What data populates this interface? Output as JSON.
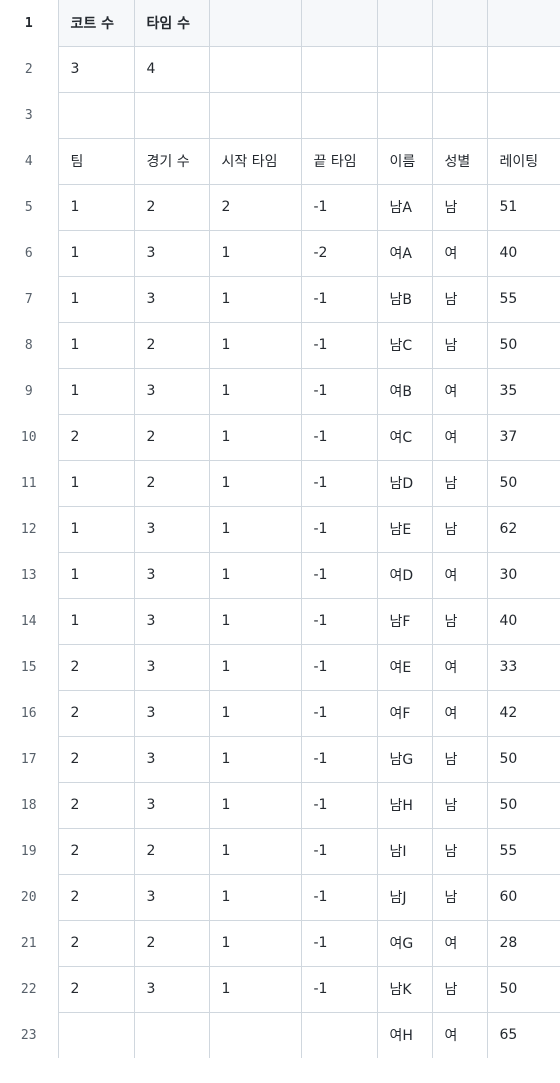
{
  "sheet": {
    "columns": 7,
    "rows": [
      {
        "n": "1",
        "cells": [
          "코트 수",
          "타임 수",
          "",
          "",
          "",
          "",
          ""
        ]
      },
      {
        "n": "2",
        "cells": [
          "3",
          "4",
          "",
          "",
          "",
          "",
          ""
        ]
      },
      {
        "n": "3",
        "cells": [
          "",
          "",
          "",
          "",
          "",
          "",
          ""
        ]
      },
      {
        "n": "4",
        "cells": [
          "팀",
          "경기 수",
          "시작 타임",
          "끝 타임",
          "이름",
          "성별",
          "레이팅"
        ]
      },
      {
        "n": "5",
        "cells": [
          "1",
          "2",
          "2",
          "-1",
          "남A",
          "남",
          "51"
        ]
      },
      {
        "n": "6",
        "cells": [
          "1",
          "3",
          "1",
          "-2",
          "여A",
          "여",
          "40"
        ]
      },
      {
        "n": "7",
        "cells": [
          "1",
          "3",
          "1",
          "-1",
          "남B",
          "남",
          "55"
        ]
      },
      {
        "n": "8",
        "cells": [
          "1",
          "2",
          "1",
          "-1",
          "남C",
          "남",
          "50"
        ]
      },
      {
        "n": "9",
        "cells": [
          "1",
          "3",
          "1",
          "-1",
          "여B",
          "여",
          "35"
        ]
      },
      {
        "n": "10",
        "cells": [
          "2",
          "2",
          "1",
          "-1",
          "여C",
          "여",
          "37"
        ]
      },
      {
        "n": "11",
        "cells": [
          "1",
          "2",
          "1",
          "-1",
          "남D",
          "남",
          "50"
        ]
      },
      {
        "n": "12",
        "cells": [
          "1",
          "3",
          "1",
          "-1",
          "남E",
          "남",
          "62"
        ]
      },
      {
        "n": "13",
        "cells": [
          "1",
          "3",
          "1",
          "-1",
          "여D",
          "여",
          "30"
        ]
      },
      {
        "n": "14",
        "cells": [
          "1",
          "3",
          "1",
          "-1",
          "남F",
          "남",
          "40"
        ]
      },
      {
        "n": "15",
        "cells": [
          "2",
          "3",
          "1",
          "-1",
          "여E",
          "여",
          "33"
        ]
      },
      {
        "n": "16",
        "cells": [
          "2",
          "3",
          "1",
          "-1",
          "여F",
          "여",
          "42"
        ]
      },
      {
        "n": "17",
        "cells": [
          "2",
          "3",
          "1",
          "-1",
          "남G",
          "남",
          "50"
        ]
      },
      {
        "n": "18",
        "cells": [
          "2",
          "3",
          "1",
          "-1",
          "남H",
          "남",
          "50"
        ]
      },
      {
        "n": "19",
        "cells": [
          "2",
          "2",
          "1",
          "-1",
          "남I",
          "남",
          "55"
        ]
      },
      {
        "n": "20",
        "cells": [
          "2",
          "3",
          "1",
          "-1",
          "남J",
          "남",
          "60"
        ]
      },
      {
        "n": "21",
        "cells": [
          "2",
          "2",
          "1",
          "-1",
          "여G",
          "여",
          "28"
        ]
      },
      {
        "n": "22",
        "cells": [
          "2",
          "3",
          "1",
          "-1",
          "남K",
          "남",
          "50"
        ]
      },
      {
        "n": "23",
        "cells": [
          "",
          "",
          "",
          "",
          "여H",
          "여",
          "65"
        ]
      }
    ]
  }
}
